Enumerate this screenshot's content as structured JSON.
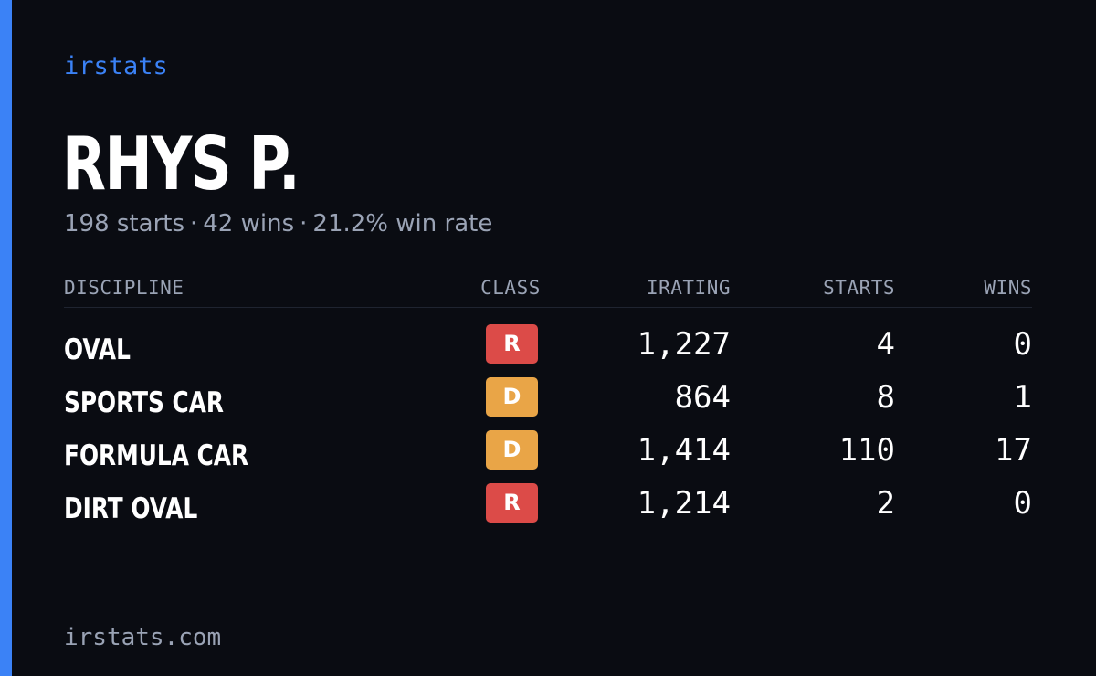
{
  "theme": {
    "accent": "#3b82f6",
    "background": "#0a0c12",
    "class_colors": {
      "R": "#dc4b48",
      "D": "#e9a547"
    }
  },
  "brand": "irstats",
  "driver": {
    "name": "RHYS P.",
    "starts_text": "198 starts",
    "wins_text": "42 wins",
    "win_rate_text": "21.2% win rate",
    "separator": "·"
  },
  "table": {
    "headers": {
      "discipline": "DISCIPLINE",
      "class": "CLASS",
      "irating": "IRATING",
      "starts": "STARTS",
      "wins": "WINS"
    },
    "rows": [
      {
        "discipline": "OVAL",
        "class": "R",
        "irating": "1,227",
        "starts": "4",
        "wins": "0"
      },
      {
        "discipline": "SPORTS CAR",
        "class": "D",
        "irating": "864",
        "starts": "8",
        "wins": "1"
      },
      {
        "discipline": "FORMULA CAR",
        "class": "D",
        "irating": "1,414",
        "starts": "110",
        "wins": "17"
      },
      {
        "discipline": "DIRT OVAL",
        "class": "R",
        "irating": "1,214",
        "starts": "2",
        "wins": "0"
      }
    ]
  },
  "footer": "irstats.com"
}
